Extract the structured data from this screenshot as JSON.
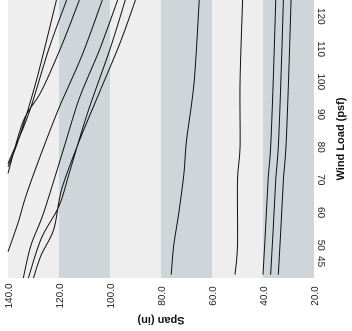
{
  "chart_data": {
    "type": "line",
    "title": "",
    "xlabel": "Span (in)",
    "ylabel": "Wind Load (psf)",
    "xlim": [
      140,
      20
    ],
    "ylim": [
      40,
      125
    ],
    "x_reversed": true,
    "grid": false,
    "legend": "none",
    "colors": {
      "plot_background": "#eeeeee",
      "band": "#cfd6da",
      "line": "#111111"
    },
    "shaded_x_ranges": [
      [
        120,
        100
      ],
      [
        80,
        60
      ],
      [
        40,
        20
      ]
    ],
    "x_ticks": [
      "140.0",
      "120.0",
      "100.0",
      "80.0",
      "60.0",
      "40.0",
      "20.0"
    ],
    "y_ticks": [
      "45",
      "50",
      "60",
      "70",
      "80",
      "90",
      "100",
      "110",
      "120"
    ],
    "series": [
      {
        "values": [
          [
            121,
            125
          ],
          [
            129,
            100
          ],
          [
            136,
            82
          ],
          [
            140,
            74
          ]
        ]
      },
      {
        "values": [
          [
            117,
            125
          ],
          [
            124,
            110
          ],
          [
            132,
            90
          ],
          [
            140,
            75
          ]
        ]
      },
      {
        "values": [
          [
            112,
            125
          ],
          [
            119,
            111
          ],
          [
            127,
            97
          ],
          [
            134,
            88
          ],
          [
            140,
            72
          ]
        ]
      },
      {
        "values": [
          [
            103,
            125
          ],
          [
            111,
            108
          ],
          [
            120,
            92
          ],
          [
            127,
            78
          ],
          [
            133,
            65
          ],
          [
            136,
            57
          ],
          [
            140,
            48
          ]
        ]
      },
      {
        "values": [
          [
            97,
            125
          ],
          [
            104,
            110
          ],
          [
            112,
            95
          ],
          [
            118,
            80
          ],
          [
            126,
            60
          ],
          [
            131,
            50
          ],
          [
            134,
            40
          ]
        ]
      },
      {
        "values": [
          [
            94,
            125
          ],
          [
            100,
            110
          ],
          [
            109,
            90
          ],
          [
            116,
            72
          ],
          [
            120,
            62
          ],
          [
            127,
            52
          ],
          [
            132,
            40
          ]
        ]
      },
      {
        "values": [
          [
            90,
            125
          ],
          [
            96,
            112
          ],
          [
            104,
            97
          ],
          [
            112,
            82
          ],
          [
            119,
            67
          ],
          [
            122,
            55
          ],
          [
            127,
            47
          ],
          [
            130,
            40
          ]
        ]
      },
      {
        "values": [
          [
            65,
            125
          ],
          [
            67,
            100
          ],
          [
            70,
            82
          ],
          [
            71,
            72
          ],
          [
            73,
            60
          ],
          [
            75,
            50
          ],
          [
            76,
            41
          ]
        ]
      },
      {
        "values": [
          [
            48,
            125
          ],
          [
            49,
            100
          ],
          [
            49,
            80
          ],
          [
            50,
            70
          ],
          [
            50,
            50
          ],
          [
            51,
            41
          ]
        ]
      },
      {
        "values": [
          [
            35,
            125
          ],
          [
            36,
            100
          ],
          [
            37,
            80
          ],
          [
            38,
            70
          ],
          [
            39,
            55
          ],
          [
            40,
            41
          ]
        ]
      },
      {
        "values": [
          [
            32,
            125
          ],
          [
            33,
            100
          ],
          [
            34,
            80
          ],
          [
            35,
            70
          ],
          [
            36,
            55
          ],
          [
            37,
            41
          ]
        ]
      },
      {
        "values": [
          [
            29,
            125
          ],
          [
            30,
            100
          ],
          [
            31,
            80
          ],
          [
            32,
            70
          ],
          [
            33,
            55
          ],
          [
            34,
            41
          ]
        ]
      }
    ]
  }
}
